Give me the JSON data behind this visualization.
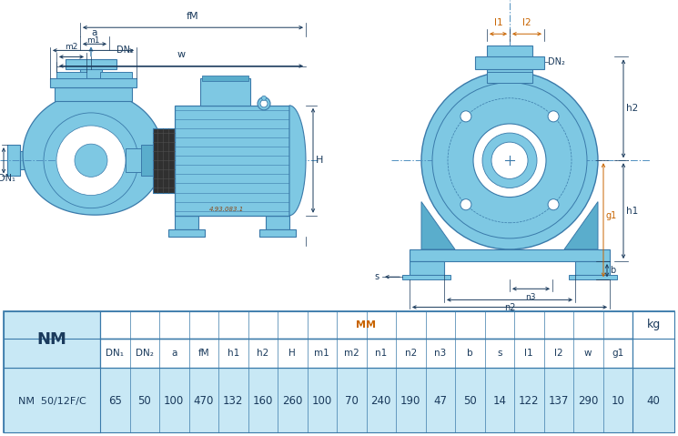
{
  "pump_model": "NM  50/12F/C",
  "nm_label": "NM",
  "mm_label": "MM",
  "kg_label": "kg",
  "col_headers": [
    "DN₁",
    "DN₂",
    "a",
    "fM",
    "h1",
    "h2",
    "H",
    "m1",
    "m2",
    "n1",
    "n2",
    "n3",
    "b",
    "s",
    "l1",
    "l2",
    "w",
    "g1"
  ],
  "col_values": [
    "65",
    "50",
    "100",
    "470",
    "132",
    "160",
    "260",
    "100",
    "70",
    "240",
    "190",
    "47",
    "50",
    "14",
    "122",
    "137",
    "290",
    "10"
  ],
  "kg_value": "40",
  "bg_white": "#ffffff",
  "bg_light_blue": "#c8e8f5",
  "text_dark": "#1a3a5c",
  "text_orange": "#c86400",
  "pump_fill": "#7ec8e3",
  "pump_dark": "#5aadcc",
  "pump_stroke": "#3a7aaa",
  "table_border": "#3a7aaa",
  "dim_color": "#1a3a5c",
  "code_text": "4.93.083.1",
  "centerline_color": "#5090c0"
}
